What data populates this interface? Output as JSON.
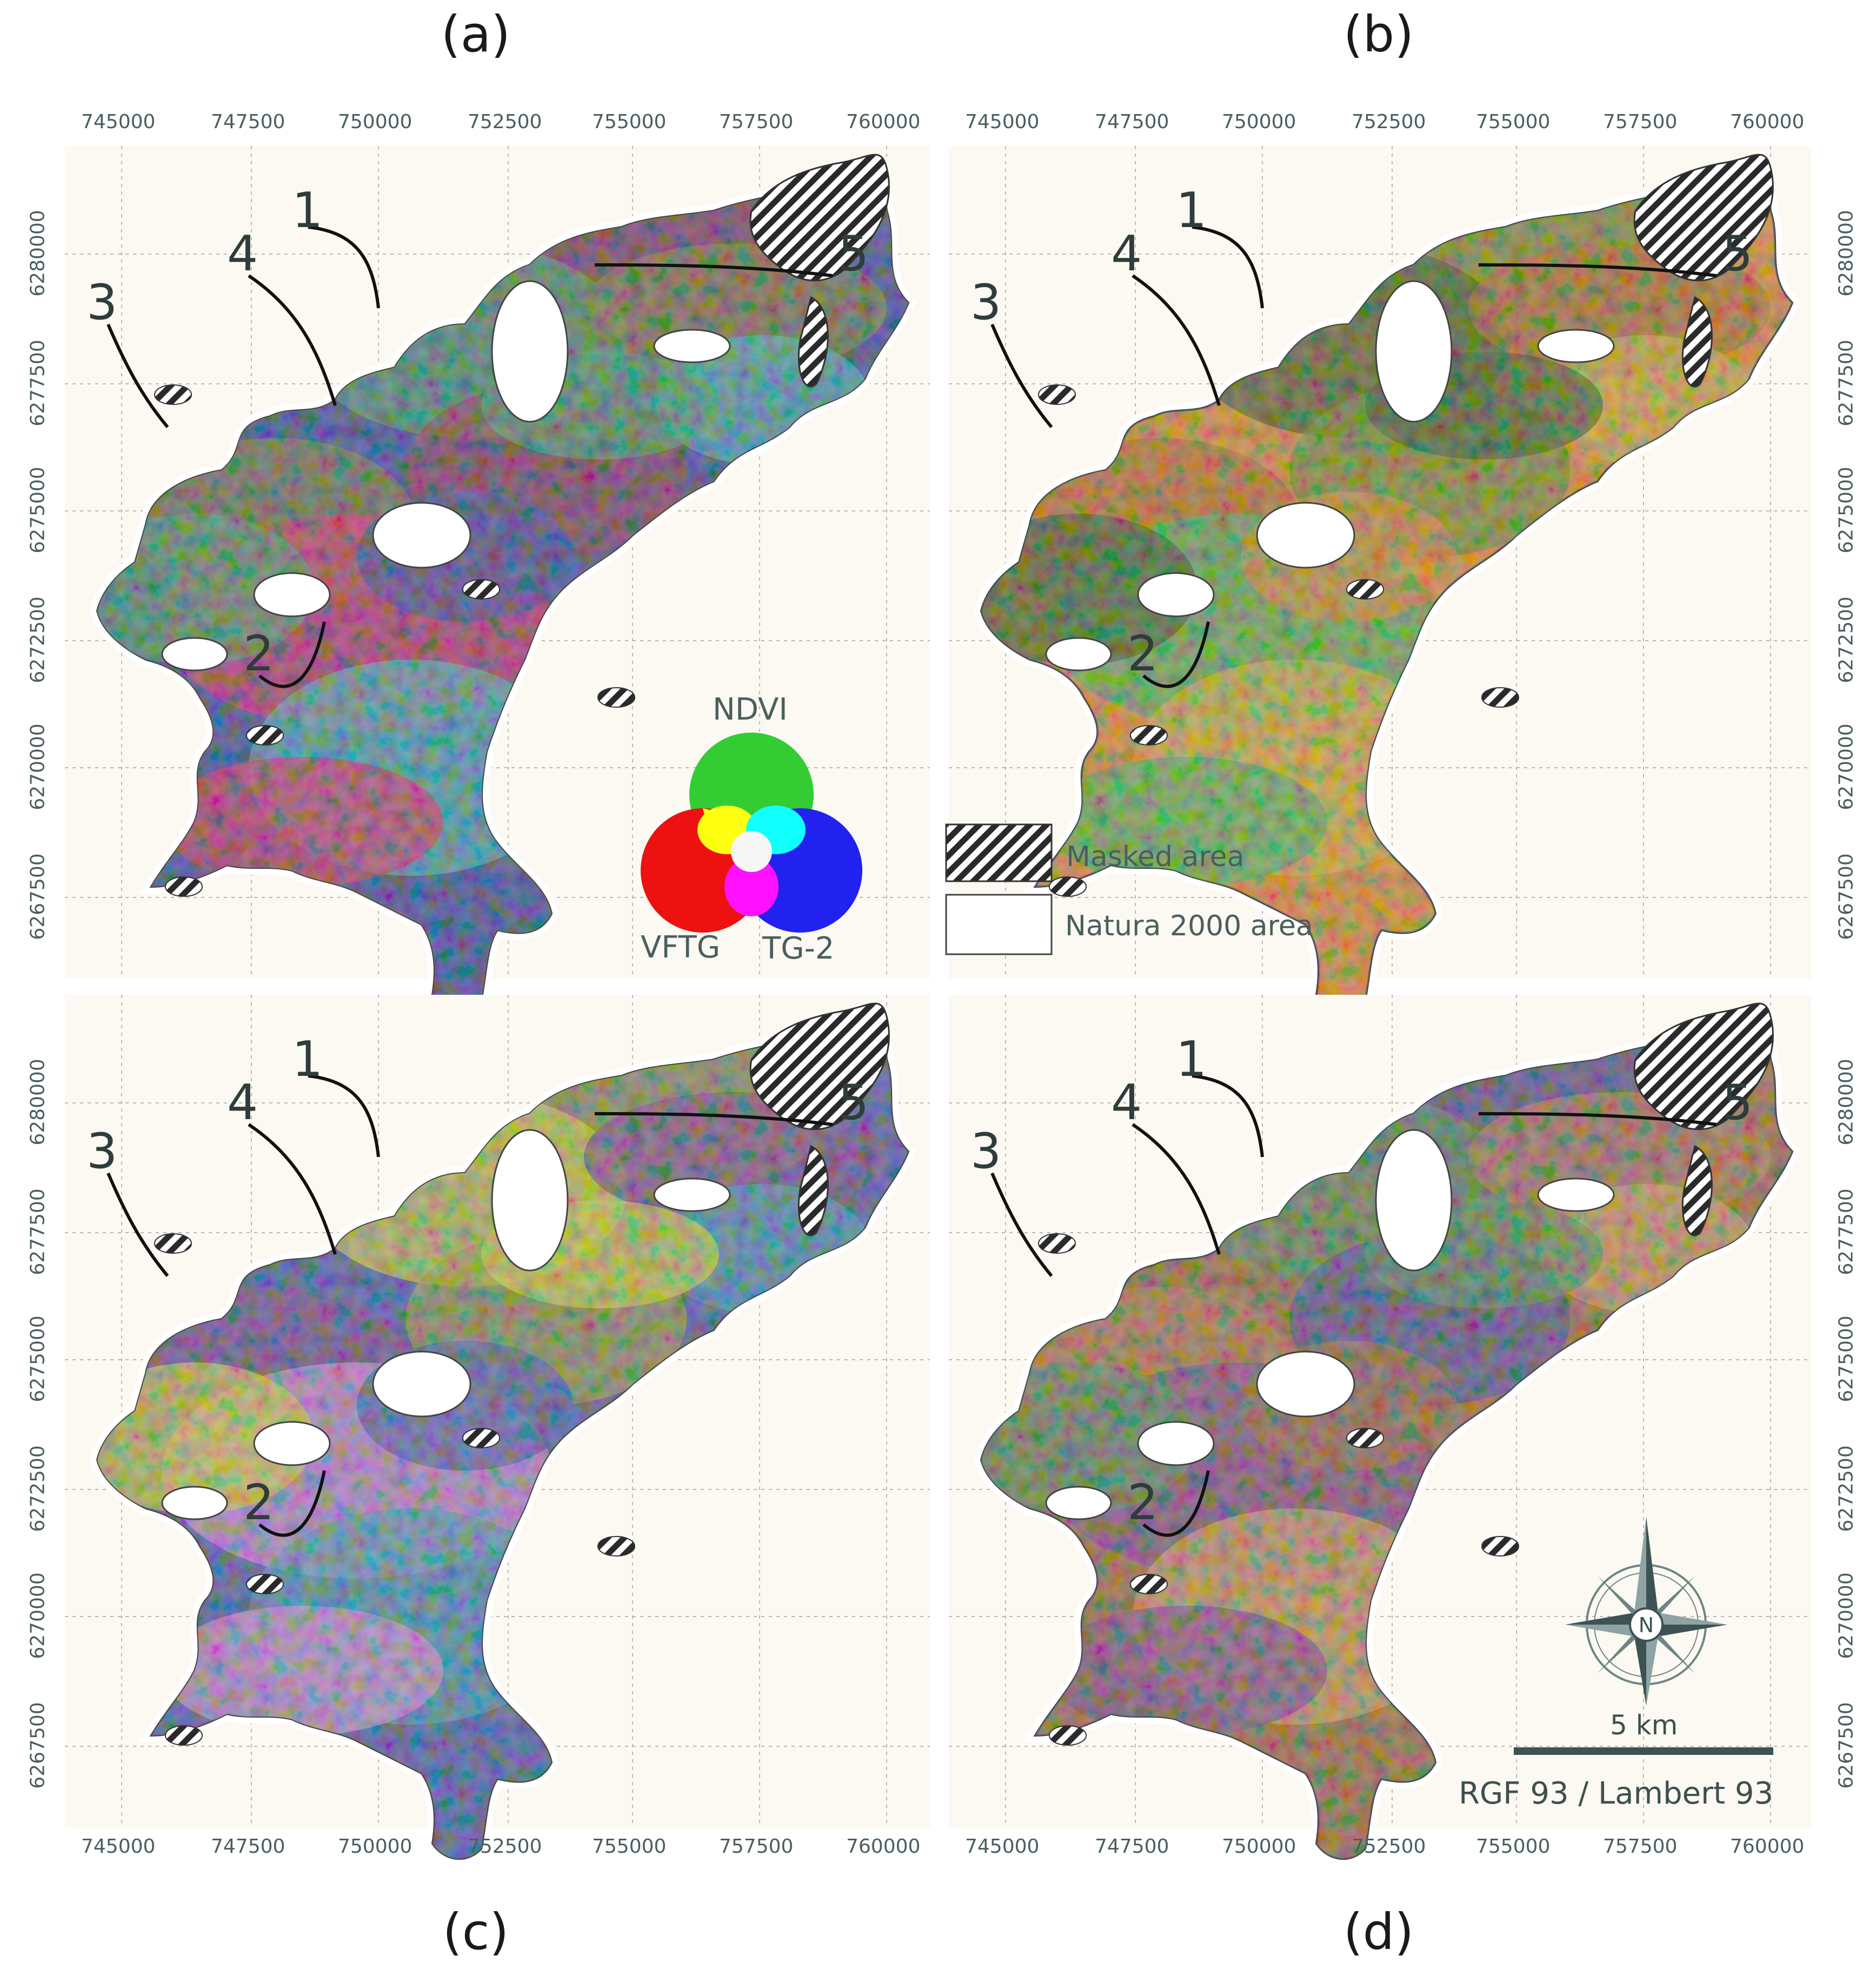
{
  "panels": [
    {
      "letter": "(a)",
      "palette": [
        "#2a3a8a",
        "#7a2a40",
        "#3a8a5a",
        "#6a6a30",
        "#c02050",
        "#3aa0a0"
      ]
    },
    {
      "letter": "(b)",
      "palette": [
        "#c87a20",
        "#5a7a20",
        "#2a4a18",
        "#a05a18",
        "#3aa04a",
        "#c0a030"
      ]
    },
    {
      "letter": "(c)",
      "palette": [
        "#3a4a9a",
        "#8a8a30",
        "#c0c030",
        "#6a3a7a",
        "#c080c0",
        "#3a8aa0"
      ]
    },
    {
      "letter": "(d)",
      "palette": [
        "#8a5a30",
        "#3a3a8a",
        "#4a7a4a",
        "#a06a40",
        "#6a3a7a",
        "#c09050"
      ]
    }
  ],
  "axes": {
    "x_ticks": [
      "745000",
      "747500",
      "750000",
      "752500",
      "755000",
      "757500",
      "760000"
    ],
    "y_ticks": [
      "6280000",
      "6277500",
      "6275000",
      "6272500",
      "6270000",
      "6267500"
    ]
  },
  "annotations": [
    "1",
    "2",
    "3",
    "4",
    "5"
  ],
  "rgb_legend": {
    "green": "NDVI",
    "red": "VFTG",
    "blue": "TG-2",
    "colors": {
      "red": "#ee1111",
      "green": "#33cc33",
      "blue": "#2222ee",
      "yellow": "#ffff11",
      "cyan": "#11ffff",
      "magenta": "#ff11ff",
      "white": "#f6f6f6"
    }
  },
  "legend": {
    "masked": "Masked area",
    "natura": "Natura 2000 area"
  },
  "scale_bar": {
    "label": "5 km"
  },
  "crs": "RGF 93 / Lambert 93",
  "north_arrow": {
    "label": "N",
    "icon": "compass-rose-icon"
  }
}
